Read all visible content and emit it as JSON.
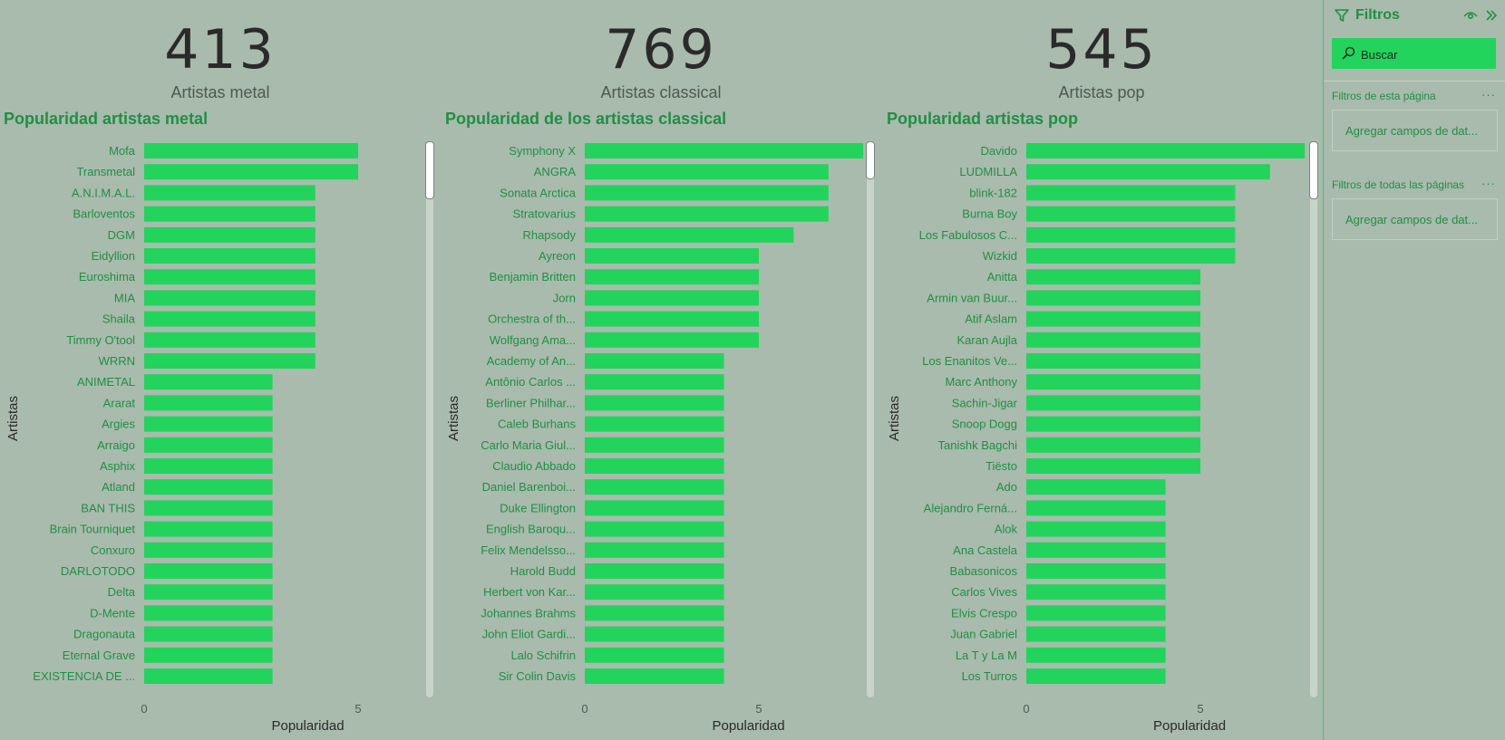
{
  "kpis": [
    {
      "value": "413",
      "label": "Artistas metal"
    },
    {
      "value": "769",
      "label": "Artistas classical"
    },
    {
      "value": "545",
      "label": "Artistas pop"
    }
  ],
  "chart_data": [
    {
      "type": "bar",
      "orientation": "horizontal",
      "title": "Popularidad artistas metal",
      "xlabel": "Popularidad",
      "ylabel": "Artistas",
      "xticks": [
        0,
        5
      ],
      "xlim": [
        0,
        6
      ],
      "color": "#22d45c",
      "categories": [
        "Mofa",
        "Transmetal",
        "A.N.I.M.A.L.",
        "Barloventos",
        "DGM",
        "Eidyllion",
        "Euroshima",
        "MIA",
        "Shaila",
        "Timmy O'tool",
        "WRRN",
        "ANIMETAL",
        "Ararat",
        "Argies",
        "Arraigo",
        "Asphix",
        "Atland",
        "BAN THIS",
        "Brain Tourniquet",
        "Conxuro",
        "DARLOTODO",
        "Delta",
        "D-Mente",
        "Dragonauta",
        "Eternal Grave",
        "EXISTENCIA DE ..."
      ],
      "values": [
        5,
        5,
        4,
        4,
        4,
        4,
        4,
        4,
        4,
        4,
        4,
        3,
        3,
        3,
        3,
        3,
        3,
        3,
        3,
        3,
        3,
        3,
        3,
        3,
        3,
        3
      ]
    },
    {
      "type": "bar",
      "orientation": "horizontal",
      "title": "Popularidad de los artistas classical",
      "xlabel": "Popularidad",
      "ylabel": "Artistas",
      "xticks": [
        0,
        5
      ],
      "xlim": [
        0,
        8
      ],
      "color": "#22d45c",
      "categories": [
        "Symphony X",
        "ANGRA",
        "Sonata Arctica",
        "Stratovarius",
        "Rhapsody",
        "Ayreon",
        "Benjamin Britten",
        "Jorn",
        "Orchestra of th...",
        "Wolfgang Ama...",
        "Academy of An...",
        "Antônio Carlos ...",
        "Berliner Philhar...",
        "Caleb Burhans",
        "Carlo Maria Giul...",
        "Claudio Abbado",
        "Daniel Barenboi...",
        "Duke Ellington",
        "English Baroqu...",
        "Felix Mendelsso...",
        "Harold Budd",
        "Herbert von Kar...",
        "Johannes Brahms",
        "John Eliot Gardi...",
        "Lalo Schifrin",
        "Sir Colin Davis"
      ],
      "values": [
        8,
        7,
        7,
        7,
        6,
        5,
        5,
        5,
        5,
        5,
        4,
        4,
        4,
        4,
        4,
        4,
        4,
        4,
        4,
        4,
        4,
        4,
        4,
        4,
        4,
        4
      ]
    },
    {
      "type": "bar",
      "orientation": "horizontal",
      "title": "Popularidad artistas pop",
      "xlabel": "Popularidad",
      "ylabel": "Artistas",
      "xticks": [
        0,
        5
      ],
      "xlim": [
        0,
        8
      ],
      "color": "#22d45c",
      "categories": [
        "Davido",
        "LUDMILLA",
        "blink-182",
        "Burna Boy",
        "Los Fabulosos C...",
        "Wizkid",
        "Anitta",
        "Armin van Buur...",
        "Atif Aslam",
        "Karan Aujla",
        "Los Enanitos Ve...",
        "Marc Anthony",
        "Sachin-Jigar",
        "Snoop Dogg",
        "Tanishk Bagchi",
        "Tiësto",
        "Ado",
        "Alejandro Ferná...",
        "Alok",
        "Ana Castela",
        "Babasonicos",
        "Carlos Vives",
        "Elvis Crespo",
        "Juan Gabriel",
        "La T y La M",
        "Los Turros"
      ],
      "values": [
        8,
        7,
        6,
        6,
        6,
        6,
        5,
        5,
        5,
        5,
        5,
        5,
        5,
        5,
        5,
        5,
        4,
        4,
        4,
        4,
        4,
        4,
        4,
        4,
        4,
        4
      ]
    }
  ],
  "filters": {
    "title": "Filtros",
    "search_placeholder": "Buscar",
    "page_section": "Filtros de esta página",
    "all_section": "Filtros de todas las páginas",
    "more": "···",
    "add_fields": "Agregar campos de dat..."
  }
}
